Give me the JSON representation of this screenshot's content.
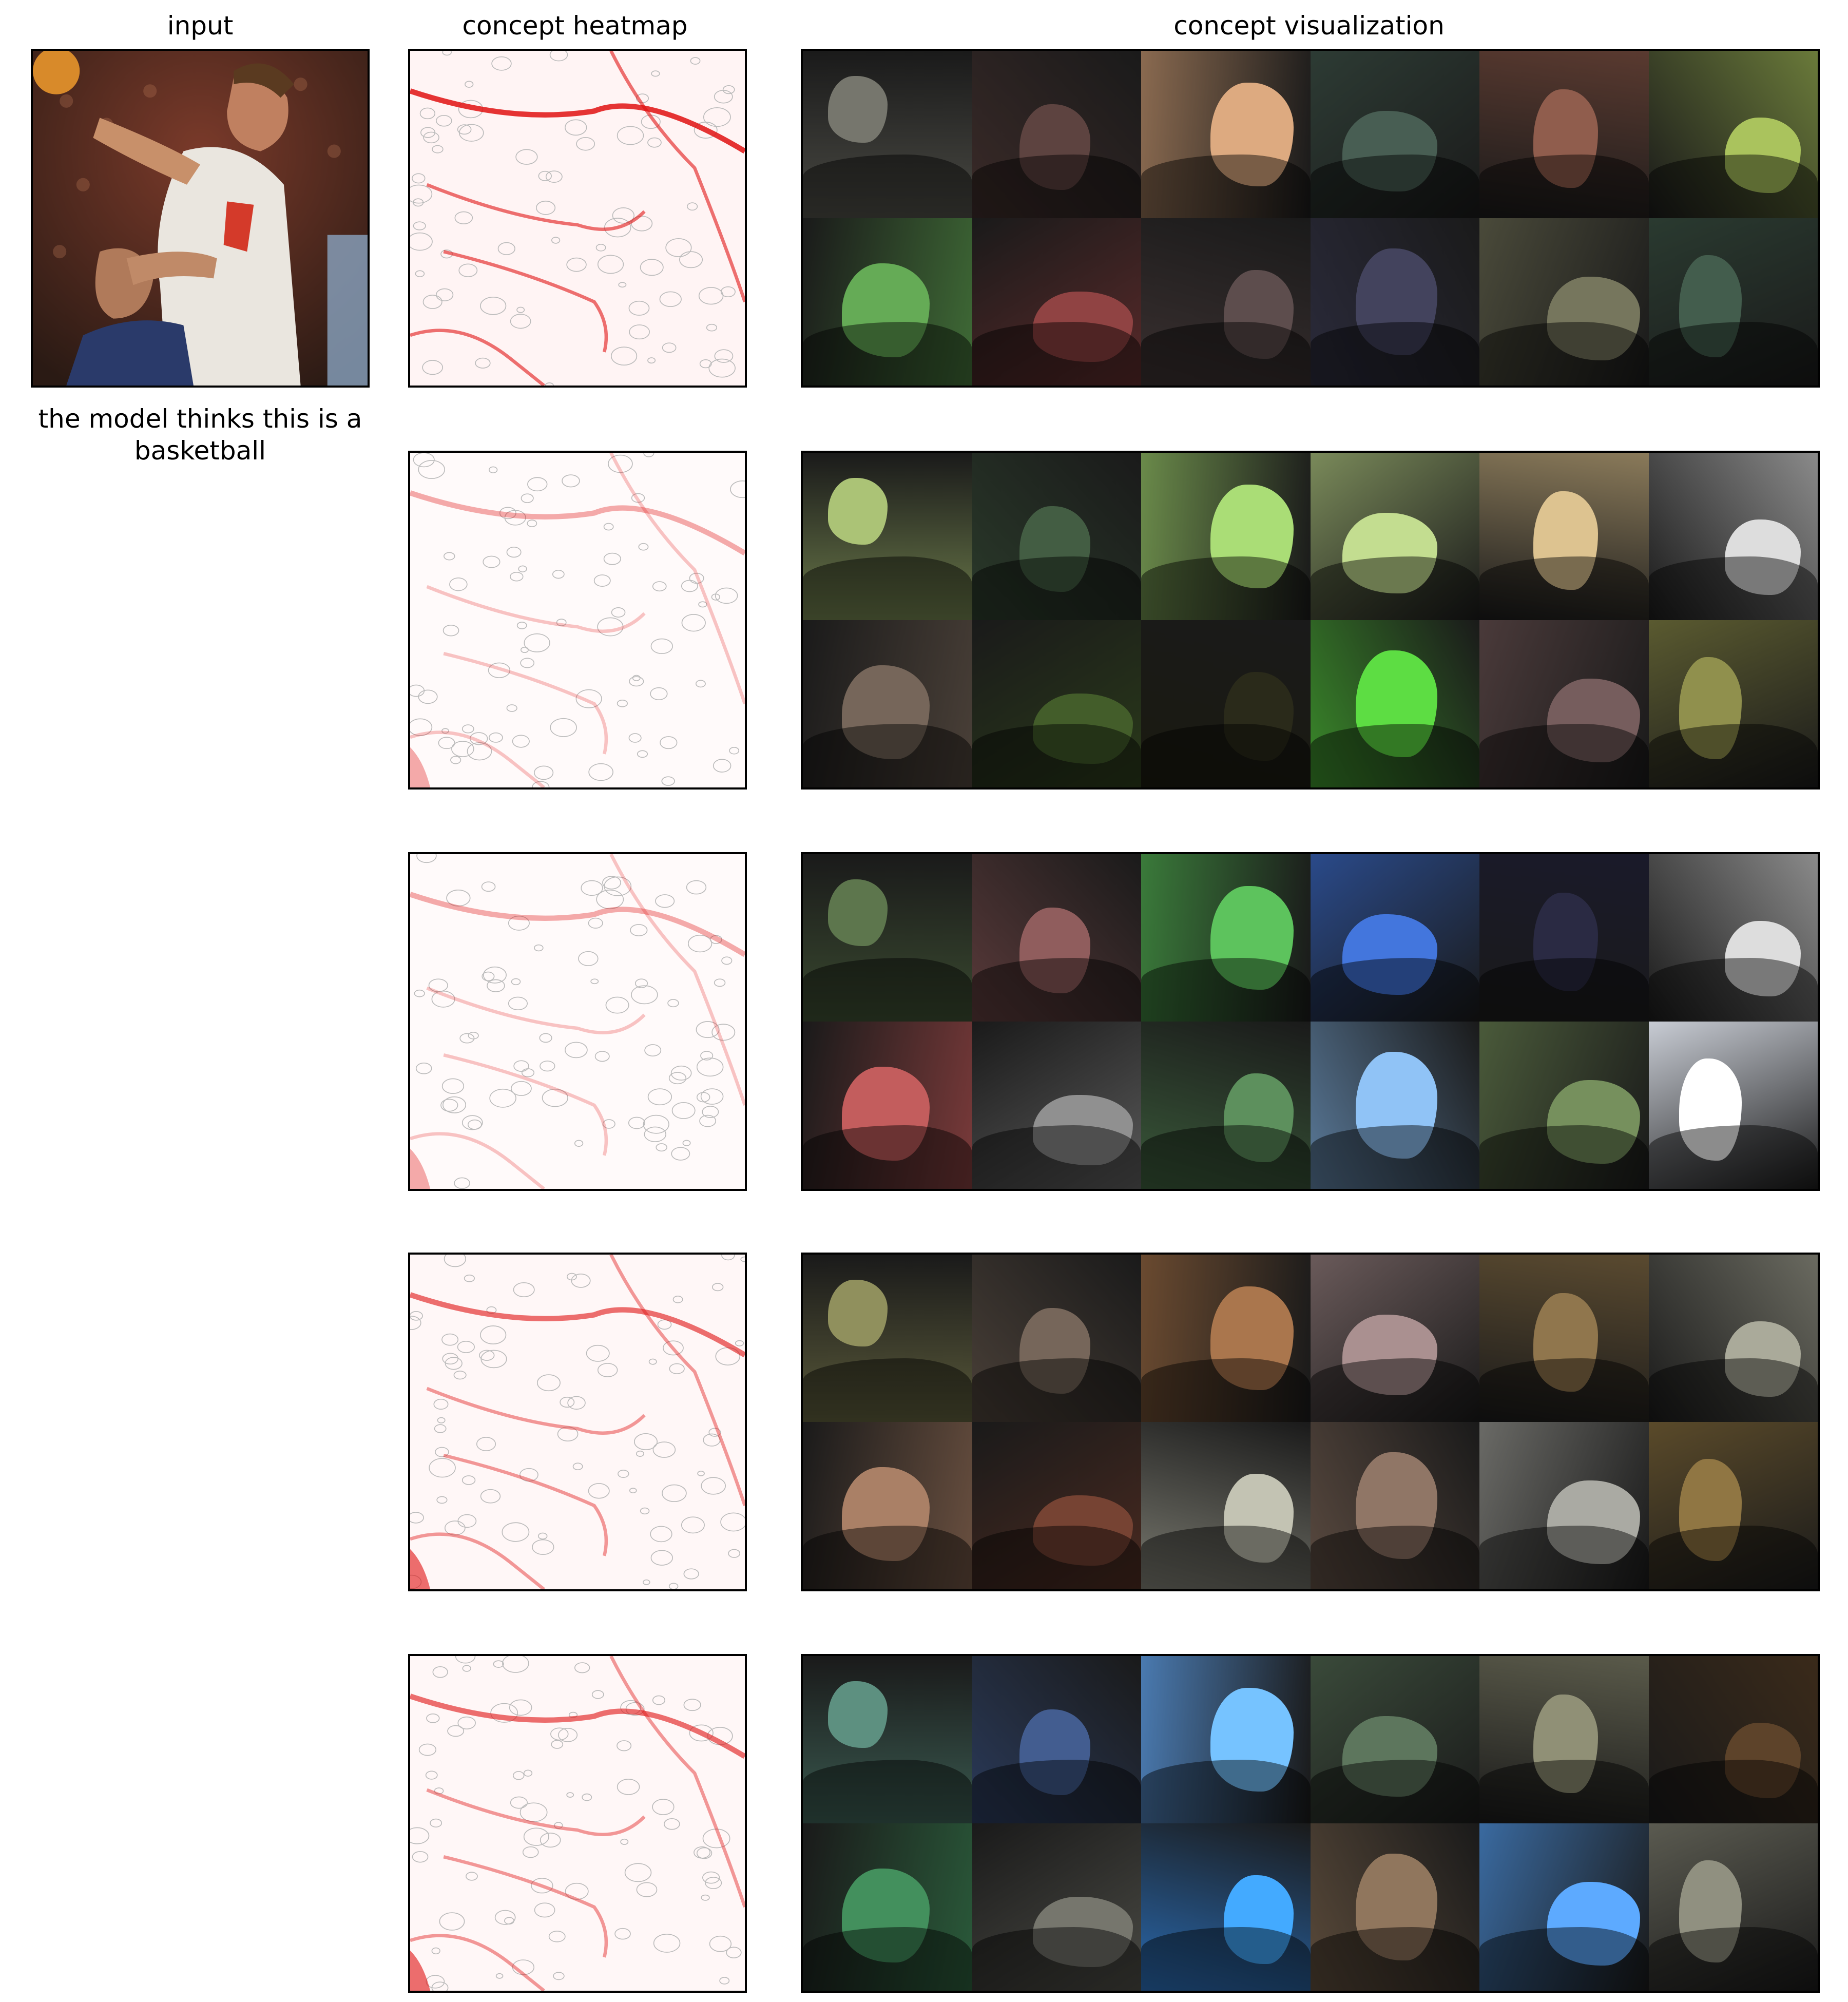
{
  "column_titles": {
    "input": "input",
    "heatmap": "concept heatmap",
    "visualization": "concept visualization"
  },
  "prediction_caption": "the model thinks this is a basketball",
  "concepts": [
    {
      "heatmap_strength": "high",
      "tiles": [
        "#4a4a44",
        "#3a2a28",
        "#8a6a50",
        "#2d3b34",
        "#5a3a30",
        "#6a7a3a",
        "#3f6b36",
        "#5a2a2a",
        "#3a3030",
        "#2a2a3a",
        "#4a4a3a",
        "#2a3a30"
      ]
    },
    {
      "heatmap_strength": "low",
      "tiles": [
        "#6b7a4a",
        "#2a3a2a",
        "#6a8a4a",
        "#7a8a5a",
        "#8a7a5a",
        "#8a8a8a",
        "#4a4038",
        "#2a3a1a",
        "#1a1a10",
        "#3a8a2a",
        "#4a3a3a",
        "#5a5a30"
      ]
    },
    {
      "heatmap_strength": "low",
      "tiles": [
        "#3a4a30",
        "#5a3a3a",
        "#3a7a3a",
        "#2a4a8a",
        "#1a1a2a",
        "#8a8a8a",
        "#7a3a3a",
        "#5a5a5a",
        "#3a5a3a",
        "#5a7a9a",
        "#4a5a3a",
        "#c8ccd4"
      ]
    },
    {
      "heatmap_strength": "medium",
      "tiles": [
        "#5a5a3a",
        "#4a4038",
        "#6a4a30",
        "#6a5a5a",
        "#5a4a30",
        "#6a6a60",
        "#6a5040",
        "#4a2a20",
        "#7a7a70",
        "#5a4a40",
        "#6a6a66",
        "#5a4a2a"
      ]
    },
    {
      "heatmap_strength": "medium",
      "tiles": [
        "#3a5a50",
        "#2a3a5a",
        "#4a7ab0",
        "#3a4a3a",
        "#5a5a4a",
        "#3a2a1a",
        "#2a5a3a",
        "#4a4a44",
        "#2a6ab0",
        "#5a4a3a",
        "#3a6aa0",
        "#5a5a50"
      ]
    }
  ]
}
